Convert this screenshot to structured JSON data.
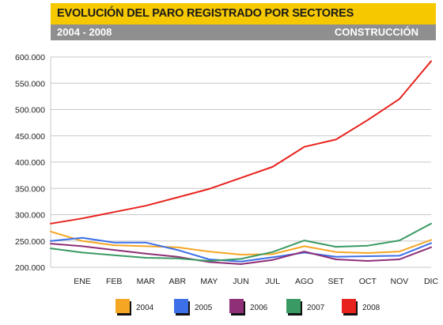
{
  "header": {
    "title": "EVOLUCIÓN DEL PARO REGISTRADO POR SECTORES",
    "period": "2004 - 2008",
    "sector": "CONSTRUCCIÓN"
  },
  "colors": {
    "title_bar": "#f5c800",
    "sub_bar": "#8f8f8f",
    "2004": "#f5a623",
    "2005": "#3d6fe8",
    "2006": "#8e2f77",
    "2007": "#3a9a63",
    "2008": "#e8231e"
  },
  "chart_data": {
    "type": "line",
    "title": "EVOLUCIÓN DEL PARO REGISTRADO POR SECTORES",
    "xlabel": "",
    "ylabel": "",
    "categories": [
      "",
      "ENE",
      "FEB",
      "MAR",
      "ABR",
      "MAY",
      "JUN",
      "JUL",
      "AGO",
      "SET",
      "OCT",
      "NOV",
      "DIC"
    ],
    "ylim": [
      200000,
      600000
    ],
    "yticks": [
      200000,
      250000,
      300000,
      350000,
      400000,
      450000,
      500000,
      550000,
      600000
    ],
    "ytick_labels": [
      "200.000",
      "250.000",
      "300.000",
      "350.000",
      "400.000",
      "450.000",
      "500.000",
      "550.000",
      "600.000"
    ],
    "grid": true,
    "legend_position": "bottom",
    "series": [
      {
        "name": "2004",
        "color": "#f5a623",
        "values": [
          268000,
          250000,
          242000,
          240000,
          238000,
          230000,
          224000,
          225000,
          240000,
          229000,
          227000,
          230000,
          252000
        ]
      },
      {
        "name": "2005",
        "color": "#3d6fe8",
        "values": [
          250000,
          256000,
          247000,
          247000,
          233000,
          215000,
          211000,
          219000,
          228000,
          220000,
          221000,
          222000,
          246000
        ]
      },
      {
        "name": "2006",
        "color": "#8e2f77",
        "values": [
          245000,
          240000,
          233000,
          226000,
          220000,
          210000,
          206000,
          214000,
          230000,
          215000,
          212000,
          215000,
          238000
        ]
      },
      {
        "name": "2007",
        "color": "#3a9a63",
        "values": [
          236000,
          228000,
          223000,
          218000,
          217000,
          212000,
          216000,
          229000,
          251000,
          239000,
          241000,
          251000,
          283000
        ]
      },
      {
        "name": "2008",
        "color": "#e8231e",
        "values": [
          283000,
          293000,
          305000,
          317000,
          333000,
          349000,
          370000,
          391000,
          429000,
          443000,
          480000,
          520000,
          592000
        ]
      }
    ]
  }
}
